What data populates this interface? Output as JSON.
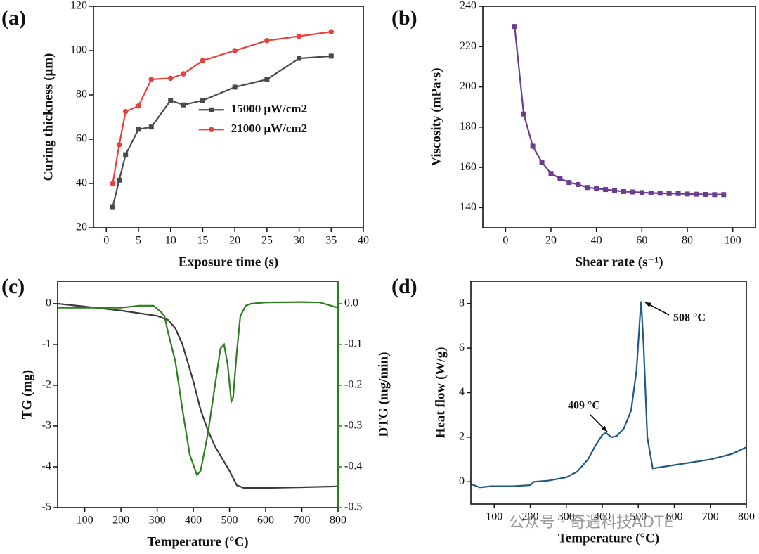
{
  "chart_data": [
    {
      "type": "line",
      "panel_label": "(a)",
      "xlabel": "Exposure time (s)",
      "ylabel": "Curing thickness (μm)",
      "x": [
        1,
        2,
        3,
        5,
        7,
        10,
        12,
        15,
        20,
        25,
        30,
        35
      ],
      "series": [
        {
          "name": "15000 μW/cm2",
          "color": "#4a4a4a",
          "marker": "square",
          "values": [
            29.5,
            41.5,
            53,
            64.5,
            65.5,
            77.5,
            75.5,
            77.5,
            83.5,
            87,
            96.5,
            97.5
          ]
        },
        {
          "name": "21000 μW/cm2",
          "color": "#e8403c",
          "marker": "circle",
          "values": [
            40,
            57.5,
            72.5,
            75,
            87,
            87.5,
            89.5,
            95.5,
            100,
            104.5,
            106.5,
            108.5
          ]
        }
      ],
      "xlim": [
        -2,
        40
      ],
      "xticks": [
        0,
        5,
        10,
        15,
        20,
        25,
        30,
        35,
        40
      ],
      "ylim": [
        20,
        120
      ],
      "yticks": [
        20,
        40,
        60,
        80,
        100,
        120
      ],
      "legend": "center right"
    },
    {
      "type": "line",
      "panel_label": "(b)",
      "xlabel": "Shear rate (s⁻¹)",
      "ylabel": "Viscosity (mPa·s)",
      "x": [
        4,
        8,
        12,
        16,
        20,
        24,
        28,
        32,
        36,
        40,
        44,
        48,
        52,
        56,
        60,
        64,
        68,
        72,
        76,
        80,
        84,
        88,
        92,
        96
      ],
      "series": [
        {
          "color": "#6a3d8f",
          "marker": "square",
          "values": [
            230,
            186.5,
            170.5,
            162.5,
            157,
            154.5,
            152.5,
            151.5,
            150,
            149.5,
            149,
            148.5,
            148,
            147.8,
            147.5,
            147.3,
            147.2,
            147,
            147,
            146.8,
            146.7,
            146.6,
            146.5,
            146.5
          ]
        }
      ],
      "xlim": [
        -10,
        110
      ],
      "xticks": [
        0,
        20,
        40,
        60,
        80,
        100
      ],
      "ylim": [
        130,
        240
      ],
      "yticks": [
        140,
        160,
        180,
        200,
        220,
        240
      ]
    },
    {
      "type": "line",
      "panel_label": "(c)",
      "xlabel": "Temperature (°C)",
      "ylabel": "TG (mg)",
      "y2label": "DTG (mg/min)",
      "series": [
        {
          "name": "TG",
          "color": "#3a3a3a",
          "x": [
            25,
            100,
            200,
            300,
            330,
            350,
            370,
            400,
            420,
            440,
            460,
            480,
            500,
            520,
            540,
            600,
            700,
            800
          ],
          "values": [
            0,
            -0.07,
            -0.17,
            -0.3,
            -0.4,
            -0.6,
            -1.0,
            -1.9,
            -2.6,
            -3.1,
            -3.5,
            -3.8,
            -4.1,
            -4.45,
            -4.52,
            -4.52,
            -4.5,
            -4.48
          ]
        },
        {
          "name": "DTG",
          "color": "#2e7d1e",
          "axis": "y2",
          "x": [
            25,
            100,
            200,
            250,
            290,
            310,
            320,
            330,
            350,
            370,
            390,
            410,
            420,
            440,
            460,
            475,
            485,
            495,
            505,
            510,
            520,
            530,
            545,
            560,
            600,
            700,
            750,
            800
          ],
          "values": [
            -0.01,
            -0.01,
            -0.01,
            -0.005,
            -0.005,
            -0.02,
            -0.03,
            -0.07,
            -0.14,
            -0.26,
            -0.37,
            -0.42,
            -0.41,
            -0.32,
            -0.2,
            -0.11,
            -0.1,
            -0.15,
            -0.24,
            -0.23,
            -0.12,
            -0.03,
            -0.005,
            0,
            0.003,
            0.004,
            0.003,
            -0.01
          ]
        }
      ],
      "xlim": [
        25,
        800
      ],
      "xticks": [
        100,
        200,
        300,
        400,
        500,
        600,
        700,
        800
      ],
      "ylim": [
        -5,
        0.55
      ],
      "yticks": [
        0,
        -1,
        -2,
        -3,
        -4,
        -5
      ],
      "y2lim": [
        -0.5,
        0.055
      ],
      "y2ticks": [
        {
          "value": 0,
          "label": "0.0"
        },
        -0.1,
        -0.2,
        -0.3,
        -0.4,
        -0.5
      ]
    },
    {
      "type": "line",
      "panel_label": "(d)",
      "xlabel": "Temperature (°C)",
      "ylabel": "Heat flow (W/g)",
      "x": [
        35,
        60,
        90,
        150,
        200,
        210,
        250,
        300,
        330,
        360,
        380,
        400,
        410,
        425,
        440,
        460,
        480,
        495,
        505,
        508,
        515,
        525,
        540,
        560,
        600,
        700,
        760,
        800
      ],
      "series": [
        {
          "color": "#1f5a85",
          "values": [
            -0.1,
            -0.25,
            -0.2,
            -0.2,
            -0.15,
            0,
            0.05,
            0.2,
            0.45,
            1.0,
            1.6,
            2.1,
            2.2,
            2.0,
            2.05,
            2.4,
            3.2,
            5.0,
            7.5,
            8.1,
            6,
            2,
            0.6,
            0.65,
            0.75,
            1.0,
            1.25,
            1.55
          ]
        }
      ],
      "xlim": [
        35,
        800
      ],
      "xticks": [
        100,
        200,
        300,
        400,
        500,
        600,
        700,
        800
      ],
      "ylim": [
        -1,
        9
      ],
      "yticks": [
        0,
        2,
        4,
        6,
        8
      ],
      "annotations": [
        "409 °C",
        "508 °C"
      ]
    }
  ],
  "watermark": "公众号 · 奇遇科技ADTE"
}
